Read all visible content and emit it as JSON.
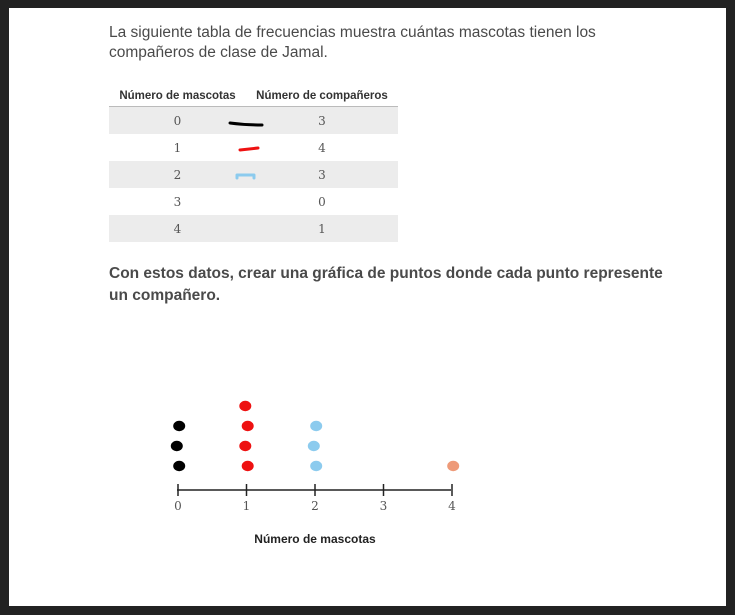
{
  "intro_text": "La siguiente tabla de frecuencias muestra cuántas mascotas tienen los compañeros de clase de Jamal.",
  "table": {
    "headers": [
      "Número de mascotas",
      "Número de compañeros"
    ],
    "rows": [
      {
        "mascotas": "0",
        "companeros": "3"
      },
      {
        "mascotas": "1",
        "companeros": "4"
      },
      {
        "mascotas": "2",
        "companeros": "3"
      },
      {
        "mascotas": "3",
        "companeros": "0"
      },
      {
        "mascotas": "4",
        "companeros": "1"
      }
    ]
  },
  "prompt_text": "Con estos datos, crear una gráfica de puntos donde cada punto represente un compañero.",
  "colors": {
    "black": "#000000",
    "red": "#ee1111",
    "blue": "#8ccbee",
    "orange": "#ee9a78"
  },
  "chart_data": {
    "type": "scatter",
    "xlabel": "Número de mascotas",
    "x_ticks": [
      "0",
      "1",
      "2",
      "3",
      "4"
    ],
    "xlim": [
      0,
      4
    ],
    "dots": [
      {
        "x": 0,
        "count": 3,
        "color": "#000000"
      },
      {
        "x": 1,
        "count": 4,
        "color": "#ee1111"
      },
      {
        "x": 2,
        "count": 3,
        "color": "#8ccbee"
      },
      {
        "x": 4,
        "count": 1,
        "color": "#ee9a78"
      }
    ]
  }
}
